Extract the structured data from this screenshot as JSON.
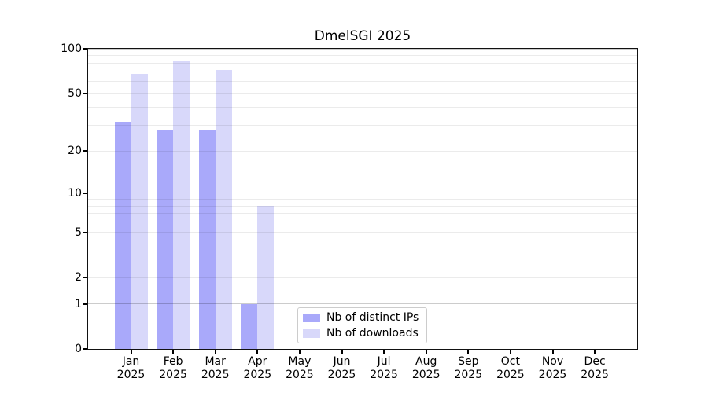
{
  "chart_data": {
    "type": "bar",
    "title": "DmelSGI 2025",
    "categories": [
      "Jan",
      "Feb",
      "Mar",
      "Apr",
      "May",
      "Jun",
      "Jul",
      "Aug",
      "Sep",
      "Oct",
      "Nov",
      "Dec"
    ],
    "year": "2025",
    "series": [
      {
        "name": "Nb of distinct IPs",
        "color": "#a9a9fa",
        "values": [
          32,
          28,
          28,
          1,
          0,
          0,
          0,
          0,
          0,
          0,
          0,
          0
        ]
      },
      {
        "name": "Nb of downloads",
        "color": "#d8d8fa",
        "values": [
          68,
          83,
          72,
          8,
          0,
          0,
          0,
          0,
          0,
          0,
          0,
          0
        ]
      }
    ],
    "yscale": "log1p",
    "ylim": [
      0,
      100
    ],
    "yticks": [
      0,
      1,
      2,
      5,
      10,
      20,
      50,
      100
    ],
    "major_gridlines": [
      1,
      10,
      100
    ],
    "minor_gridlines": [
      2,
      3,
      4,
      5,
      6,
      7,
      8,
      9,
      20,
      30,
      40,
      50,
      60,
      70,
      80,
      90
    ],
    "major_grid_color": "rgba(0,0,0,0.20)",
    "minor_grid_color": "rgba(0,0,0,0.08)",
    "axis_color": "#000000",
    "grid": true,
    "legend_position": "lower-center"
  }
}
